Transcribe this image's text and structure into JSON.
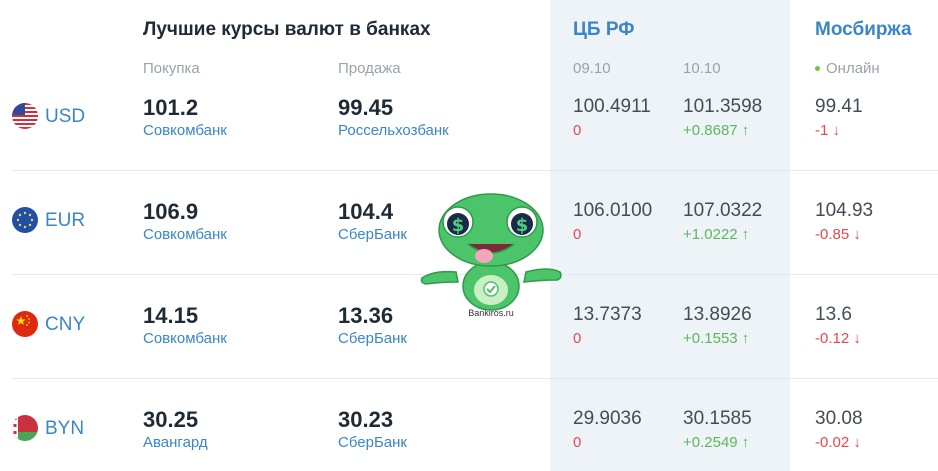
{
  "header": {
    "title": "Лучшие курсы валют в банках",
    "buy_label": "Покупка",
    "sell_label": "Продажа",
    "cbr_title": "ЦБ РФ",
    "cbr_date1": "09.10",
    "cbr_date2": "10.10",
    "moex_title": "Мосбиржа",
    "moex_status": "Онлайн"
  },
  "rows": [
    {
      "code": "USD",
      "buy": "101.2",
      "buy_bank": "Совкомбанк",
      "sell": "99.45",
      "sell_bank": "Россельхозбанк",
      "cbr1": "100.4911",
      "cbr1_change": "0",
      "cbr2": "101.3598",
      "cbr2_change": "+0.8687 ↑",
      "moex": "99.41",
      "moex_change": "-1 ↓"
    },
    {
      "code": "EUR",
      "buy": "106.9",
      "buy_bank": "Совкомбанк",
      "sell": "104.4",
      "sell_bank": "СберБанк",
      "cbr1": "106.0100",
      "cbr1_change": "0",
      "cbr2": "107.0322",
      "cbr2_change": "+1.0222 ↑",
      "moex": "104.93",
      "moex_change": "-0.85 ↓"
    },
    {
      "code": "CNY",
      "buy": "14.15",
      "buy_bank": "Совкомбанк",
      "sell": "13.36",
      "sell_bank": "СберБанк",
      "cbr1": "13.7373",
      "cbr1_change": "0",
      "cbr2": "13.8926",
      "cbr2_change": "+0.1553 ↑",
      "moex": "13.6",
      "moex_change": "-0.12 ↓"
    },
    {
      "code": "BYN",
      "buy": "30.25",
      "buy_bank": "Авангард",
      "sell": "30.23",
      "sell_bank": "СберБанк",
      "cbr1": "29.9036",
      "cbr1_change": "0",
      "cbr2": "30.1585",
      "cbr2_change": "+0.2549 ↑",
      "moex": "30.08",
      "moex_change": "-0.02 ↓"
    }
  ],
  "mascot": {
    "caption": "Bankiros.ru"
  },
  "colors": {
    "accent": "#3a86c8",
    "positive": "#5cb85c",
    "negative": "#e5484d",
    "cbr_background": "#eef3f8"
  }
}
